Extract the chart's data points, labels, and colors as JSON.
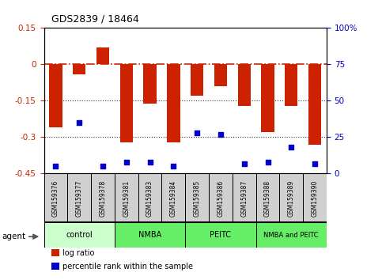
{
  "title": "GDS2839 / 18464",
  "samples": [
    "GSM159376",
    "GSM159377",
    "GSM159378",
    "GSM159381",
    "GSM159383",
    "GSM159384",
    "GSM159385",
    "GSM159386",
    "GSM159387",
    "GSM159388",
    "GSM159389",
    "GSM159390"
  ],
  "log_ratio": [
    -0.26,
    -0.04,
    0.07,
    -0.32,
    -0.16,
    -0.32,
    -0.13,
    -0.09,
    -0.17,
    -0.28,
    -0.17,
    -0.33
  ],
  "percentile": [
    5,
    35,
    5,
    8,
    8,
    5,
    28,
    27,
    7,
    8,
    18,
    7
  ],
  "bar_color": "#cc2200",
  "dot_color": "#0000cc",
  "ylim_left": [
    -0.45,
    0.15
  ],
  "ylim_right": [
    0,
    100
  ],
  "yticks_left": [
    0.15,
    0.0,
    -0.15,
    -0.3,
    -0.45
  ],
  "yticks_right": [
    100,
    75,
    50,
    25,
    0
  ],
  "hline_color": "#cc2200",
  "dotted_color": "#333333",
  "groups": [
    {
      "label": "control",
      "start": 0,
      "end": 3,
      "color": "#ccffcc"
    },
    {
      "label": "NMBA",
      "start": 3,
      "end": 6,
      "color": "#66ee66"
    },
    {
      "label": "PEITC",
      "start": 6,
      "end": 9,
      "color": "#66ee66"
    },
    {
      "label": "NMBA and PEITC",
      "start": 9,
      "end": 12,
      "color": "#66ee66"
    }
  ],
  "legend_items": [
    {
      "label": "log ratio",
      "color": "#cc2200"
    },
    {
      "label": "percentile rank within the sample",
      "color": "#0000cc"
    }
  ],
  "xlabel_agent": "agent",
  "bar_width": 0.55,
  "sample_box_color": "#d0d0d0",
  "fig_width": 4.83,
  "fig_height": 3.54,
  "dpi": 100
}
